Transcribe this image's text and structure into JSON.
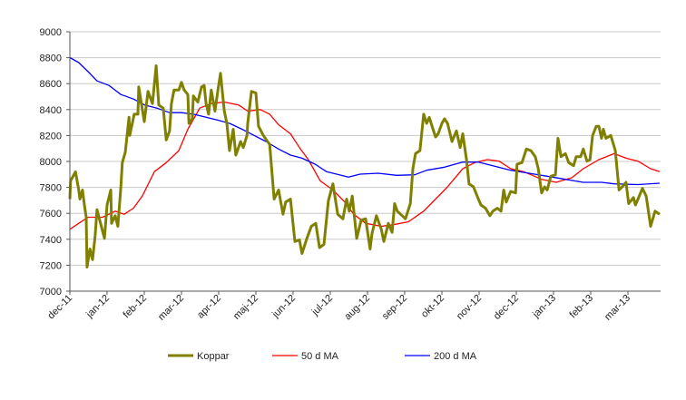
{
  "chart_data": {
    "type": "line",
    "title": "",
    "xlabel": "",
    "ylabel": "",
    "x_unit": "months since dec-11",
    "ylim": [
      7000,
      9000
    ],
    "yticks": [
      7000,
      7200,
      7400,
      7600,
      7800,
      8000,
      8200,
      8400,
      8600,
      8800,
      9000
    ],
    "xtick_labels": [
      "dec-11",
      "jan-12",
      "feb-12",
      "mar-12",
      "apr-12",
      "maj-12",
      "jun-12",
      "jul-12",
      "aug-12",
      "sep-12",
      "okt-12",
      "nov-12",
      "dec-12",
      "jan-13",
      "feb-13",
      "mar-13"
    ],
    "xlim": [
      0,
      15.85
    ],
    "grid": "horizontal",
    "legend_placement": "bottom",
    "series": [
      {
        "name": "Koppar",
        "color": "#808000",
        "points": [
          [
            0,
            7710
          ],
          [
            0.02,
            7850
          ],
          [
            0.15,
            7920
          ],
          [
            0.24,
            7780
          ],
          [
            0.27,
            7710
          ],
          [
            0.34,
            7780
          ],
          [
            0.39,
            7664
          ],
          [
            0.44,
            7570
          ],
          [
            0.46,
            7185
          ],
          [
            0.54,
            7325
          ],
          [
            0.61,
            7243
          ],
          [
            0.68,
            7430
          ],
          [
            0.73,
            7629
          ],
          [
            0.93,
            7407
          ],
          [
            1.0,
            7664
          ],
          [
            1.1,
            7780
          ],
          [
            1.12,
            7523
          ],
          [
            1.22,
            7582
          ],
          [
            1.29,
            7500
          ],
          [
            1.37,
            7804
          ],
          [
            1.41,
            7991
          ],
          [
            1.49,
            8072
          ],
          [
            1.59,
            8341
          ],
          [
            1.61,
            8201
          ],
          [
            1.73,
            8364
          ],
          [
            1.83,
            8364
          ],
          [
            1.85,
            8575
          ],
          [
            2.0,
            8306
          ],
          [
            2.1,
            8540
          ],
          [
            2.22,
            8446
          ],
          [
            2.32,
            8738
          ],
          [
            2.39,
            8435
          ],
          [
            2.51,
            8411
          ],
          [
            2.59,
            8166
          ],
          [
            2.68,
            8236
          ],
          [
            2.73,
            8446
          ],
          [
            2.8,
            8551
          ],
          [
            2.93,
            8551
          ],
          [
            3.0,
            8610
          ],
          [
            3.07,
            8551
          ],
          [
            3.17,
            8516
          ],
          [
            3.2,
            8294
          ],
          [
            3.29,
            8329
          ],
          [
            3.32,
            8505
          ],
          [
            3.44,
            8458
          ],
          [
            3.54,
            8575
          ],
          [
            3.61,
            8586
          ],
          [
            3.66,
            8446
          ],
          [
            3.73,
            8364
          ],
          [
            3.8,
            8551
          ],
          [
            3.9,
            8388
          ],
          [
            3.98,
            8551
          ],
          [
            4.05,
            8680
          ],
          [
            4.15,
            8388
          ],
          [
            4.22,
            8294
          ],
          [
            4.29,
            8084
          ],
          [
            4.39,
            8248
          ],
          [
            4.46,
            8049
          ],
          [
            4.59,
            8154
          ],
          [
            4.66,
            8107
          ],
          [
            4.76,
            8201
          ],
          [
            4.78,
            8294
          ],
          [
            4.88,
            8540
          ],
          [
            5.0,
            8528
          ],
          [
            5.07,
            8271
          ],
          [
            5.2,
            8201
          ],
          [
            5.37,
            8131
          ],
          [
            5.49,
            7710
          ],
          [
            5.61,
            7780
          ],
          [
            5.73,
            7593
          ],
          [
            5.8,
            7687
          ],
          [
            5.93,
            7710
          ],
          [
            6.05,
            7383
          ],
          [
            6.17,
            7395
          ],
          [
            6.24,
            7290
          ],
          [
            6.37,
            7407
          ],
          [
            6.49,
            7500
          ],
          [
            6.61,
            7523
          ],
          [
            6.71,
            7336
          ],
          [
            6.83,
            7360
          ],
          [
            6.95,
            7698
          ],
          [
            7.07,
            7827
          ],
          [
            7.2,
            7593
          ],
          [
            7.34,
            7558
          ],
          [
            7.44,
            7710
          ],
          [
            7.51,
            7617
          ],
          [
            7.59,
            7733
          ],
          [
            7.71,
            7407
          ],
          [
            7.83,
            7547
          ],
          [
            7.95,
            7558
          ],
          [
            8.07,
            7325
          ],
          [
            8.12,
            7442
          ],
          [
            8.24,
            7582
          ],
          [
            8.37,
            7477
          ],
          [
            8.44,
            7383
          ],
          [
            8.56,
            7523
          ],
          [
            8.66,
            7453
          ],
          [
            8.73,
            7675
          ],
          [
            8.8,
            7617
          ],
          [
            9.02,
            7558
          ],
          [
            9.15,
            7675
          ],
          [
            9.22,
            7944
          ],
          [
            9.29,
            8060
          ],
          [
            9.41,
            8084
          ],
          [
            9.51,
            8364
          ],
          [
            9.59,
            8294
          ],
          [
            9.66,
            8340
          ],
          [
            9.76,
            8248
          ],
          [
            9.83,
            8189
          ],
          [
            9.9,
            8213
          ],
          [
            10.0,
            8294
          ],
          [
            10.07,
            8329
          ],
          [
            10.15,
            8294
          ],
          [
            10.27,
            8154
          ],
          [
            10.39,
            8236
          ],
          [
            10.49,
            8107
          ],
          [
            10.56,
            8213
          ],
          [
            10.66,
            8014
          ],
          [
            10.73,
            7827
          ],
          [
            10.85,
            7804
          ],
          [
            10.98,
            7710
          ],
          [
            11.05,
            7664
          ],
          [
            11.17,
            7640
          ],
          [
            11.29,
            7582
          ],
          [
            11.37,
            7617
          ],
          [
            11.49,
            7640
          ],
          [
            11.59,
            7617
          ],
          [
            11.66,
            7780
          ],
          [
            11.73,
            7687
          ],
          [
            11.85,
            7769
          ],
          [
            11.98,
            7757
          ],
          [
            12.02,
            7979
          ],
          [
            12.15,
            7991
          ],
          [
            12.27,
            8096
          ],
          [
            12.39,
            8084
          ],
          [
            12.51,
            8037
          ],
          [
            12.59,
            7944
          ],
          [
            12.68,
            7757
          ],
          [
            12.76,
            7804
          ],
          [
            12.83,
            7780
          ],
          [
            12.93,
            7886
          ],
          [
            13.05,
            7897
          ],
          [
            13.12,
            8178
          ],
          [
            13.2,
            8037
          ],
          [
            13.32,
            8060
          ],
          [
            13.41,
            7991
          ],
          [
            13.54,
            7967
          ],
          [
            13.61,
            8037
          ],
          [
            13.73,
            8037
          ],
          [
            13.8,
            8096
          ],
          [
            13.9,
            8002
          ],
          [
            13.98,
            8014
          ],
          [
            14.05,
            8201
          ],
          [
            14.15,
            8271
          ],
          [
            14.22,
            8271
          ],
          [
            14.29,
            8178
          ],
          [
            14.34,
            8248
          ],
          [
            14.41,
            8178
          ],
          [
            14.54,
            8201
          ],
          [
            14.66,
            8084
          ],
          [
            14.76,
            7780
          ],
          [
            14.88,
            7815
          ],
          [
            14.95,
            7839
          ],
          [
            15.02,
            7675
          ],
          [
            15.15,
            7722
          ],
          [
            15.2,
            7664
          ],
          [
            15.27,
            7710
          ],
          [
            15.39,
            7792
          ],
          [
            15.49,
            7734
          ],
          [
            15.61,
            7500
          ],
          [
            15.73,
            7617
          ],
          [
            15.85,
            7593
          ]
        ]
      },
      {
        "name": "50 d MA",
        "color": "#ff0000",
        "points": [
          [
            0,
            7477
          ],
          [
            0.24,
            7523
          ],
          [
            0.49,
            7570
          ],
          [
            0.88,
            7570
          ],
          [
            1.22,
            7617
          ],
          [
            1.46,
            7593
          ],
          [
            1.71,
            7640
          ],
          [
            1.95,
            7734
          ],
          [
            2.27,
            7921
          ],
          [
            2.59,
            7991
          ],
          [
            2.93,
            8084
          ],
          [
            3.17,
            8248
          ],
          [
            3.49,
            8411
          ],
          [
            3.8,
            8446
          ],
          [
            4.15,
            8458
          ],
          [
            4.54,
            8435
          ],
          [
            4.78,
            8388
          ],
          [
            5.12,
            8400
          ],
          [
            5.37,
            8364
          ],
          [
            5.61,
            8283
          ],
          [
            5.93,
            8213
          ],
          [
            6.17,
            8107
          ],
          [
            6.41,
            8014
          ],
          [
            6.73,
            7850
          ],
          [
            7.07,
            7780
          ],
          [
            7.39,
            7687
          ],
          [
            7.63,
            7593
          ],
          [
            7.95,
            7523
          ],
          [
            8.37,
            7500
          ],
          [
            8.68,
            7512
          ],
          [
            9.1,
            7535
          ],
          [
            9.51,
            7617
          ],
          [
            9.83,
            7710
          ],
          [
            10.15,
            7804
          ],
          [
            10.56,
            7944
          ],
          [
            10.88,
            7991
          ],
          [
            11.22,
            8014
          ],
          [
            11.54,
            8002
          ],
          [
            11.85,
            7944
          ],
          [
            12.2,
            7921
          ],
          [
            12.68,
            7862
          ],
          [
            13.07,
            7839
          ],
          [
            13.49,
            7874
          ],
          [
            13.8,
            7944
          ],
          [
            14.22,
            8014
          ],
          [
            14.63,
            8060
          ],
          [
            14.95,
            8025
          ],
          [
            15.27,
            8002
          ],
          [
            15.61,
            7944
          ],
          [
            15.85,
            7921
          ]
        ]
      },
      {
        "name": "200 d MA",
        "color": "#0000ff",
        "points": [
          [
            0,
            8801
          ],
          [
            0.24,
            8762
          ],
          [
            0.49,
            8692
          ],
          [
            0.73,
            8621
          ],
          [
            1.05,
            8586
          ],
          [
            1.37,
            8516
          ],
          [
            1.71,
            8481
          ],
          [
            2.02,
            8434
          ],
          [
            2.34,
            8411
          ],
          [
            2.68,
            8376
          ],
          [
            3.0,
            8376
          ],
          [
            3.32,
            8364
          ],
          [
            3.66,
            8341
          ],
          [
            3.98,
            8318
          ],
          [
            4.29,
            8294
          ],
          [
            4.63,
            8248
          ],
          [
            4.95,
            8201
          ],
          [
            5.27,
            8154
          ],
          [
            5.61,
            8096
          ],
          [
            5.93,
            8049
          ],
          [
            6.24,
            8025
          ],
          [
            6.59,
            7979
          ],
          [
            6.9,
            7921
          ],
          [
            7.39,
            7886
          ],
          [
            7.49,
            7879
          ],
          [
            7.8,
            7902
          ],
          [
            8.29,
            7909
          ],
          [
            8.78,
            7893
          ],
          [
            9.27,
            7897
          ],
          [
            9.59,
            7932
          ],
          [
            10.07,
            7956
          ],
          [
            10.56,
            7995
          ],
          [
            10.98,
            7995
          ],
          [
            11.37,
            7967
          ],
          [
            11.85,
            7932
          ],
          [
            12.34,
            7909
          ],
          [
            12.83,
            7886
          ],
          [
            13.32,
            7862
          ],
          [
            13.8,
            7839
          ],
          [
            14.29,
            7839
          ],
          [
            14.63,
            7827
          ],
          [
            15.27,
            7822
          ],
          [
            15.85,
            7832
          ]
        ]
      }
    ]
  }
}
